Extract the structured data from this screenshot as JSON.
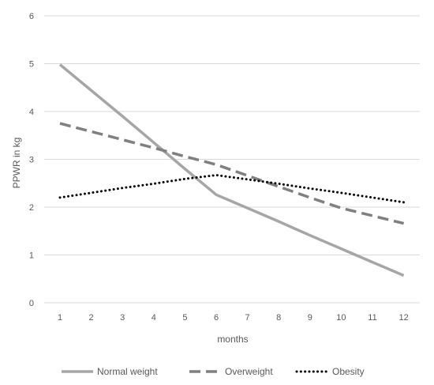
{
  "chart_data": {
    "type": "line",
    "title": "",
    "xlabel": "months",
    "ylabel": "PPWR in kg",
    "categories": [
      "1",
      "2",
      "3",
      "4",
      "5",
      "6",
      "7",
      "8",
      "9",
      "10",
      "11",
      "12"
    ],
    "ylim": [
      0,
      6
    ],
    "yticks": [
      "0",
      "1",
      "2",
      "3",
      "4",
      "5",
      "6"
    ],
    "grid": "horizontal",
    "legend_position": "bottom",
    "series": [
      {
        "name": "Normal weight",
        "color": "#a6a6a6",
        "dash": "solid",
        "values": [
          4.98,
          4.44,
          3.9,
          3.35,
          2.8,
          2.26,
          1.98,
          1.7,
          1.41,
          1.13,
          0.85,
          0.57
        ]
      },
      {
        "name": "Overweight",
        "color": "#808080",
        "dash": "dashed",
        "values": [
          3.75,
          3.58,
          3.41,
          3.24,
          3.06,
          2.89,
          2.66,
          2.43,
          2.2,
          1.98,
          1.82,
          1.66
        ]
      },
      {
        "name": "Obesity",
        "color": "#000000",
        "dash": "dotted",
        "values": [
          2.2,
          2.3,
          2.4,
          2.49,
          2.59,
          2.67,
          2.58,
          2.49,
          2.39,
          2.3,
          2.2,
          2.1
        ]
      }
    ]
  }
}
